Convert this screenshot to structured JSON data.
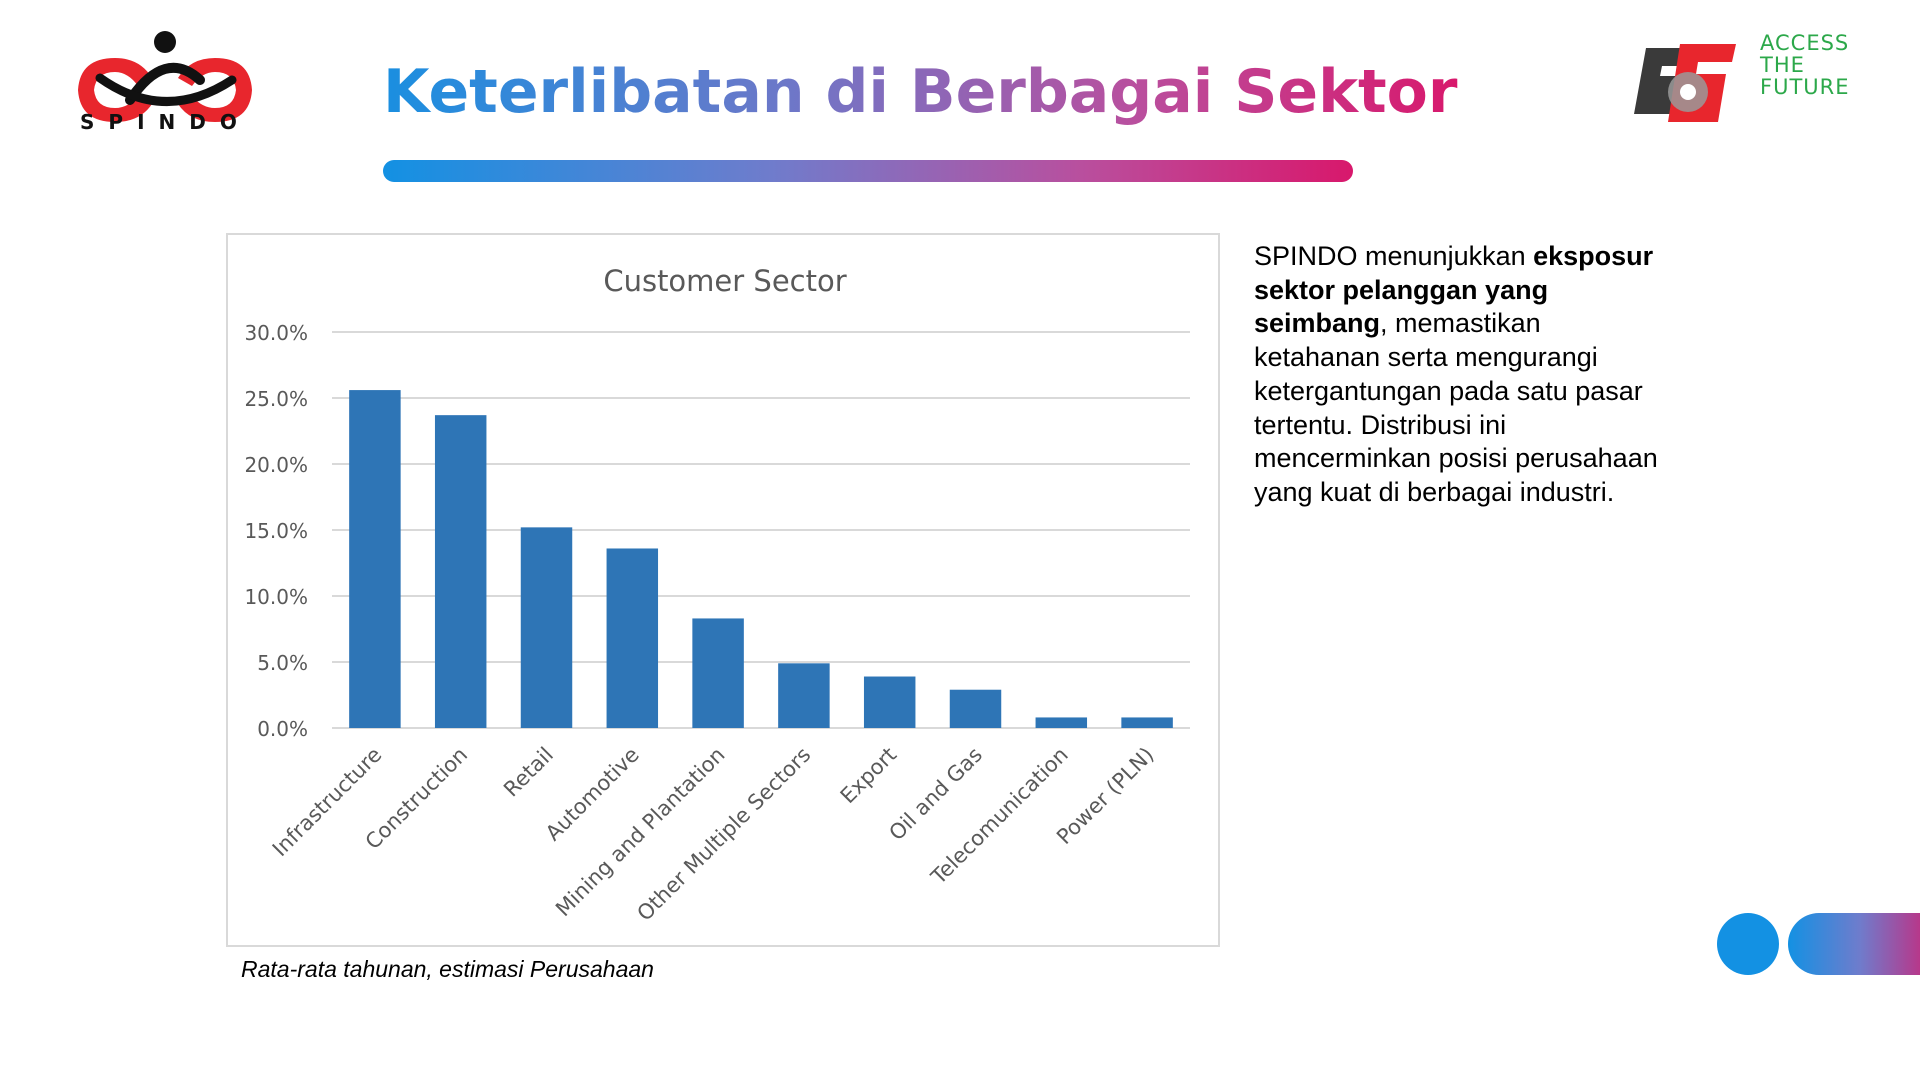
{
  "header": {
    "logo_text": "SPINDO",
    "title": "Keterlibatan di Berbagai Sektor",
    "tagline": [
      "ACCESS",
      "THE",
      "FUTURE"
    ]
  },
  "colors": {
    "bar": "#2e75b6",
    "title_gradient_start": "#1a8fe0",
    "title_gradient_end": "#d8186c",
    "logo_red": "#e8262d",
    "tagline_green": "#2ca84a"
  },
  "chart_data": {
    "type": "bar",
    "title": "Customer Sector",
    "categories": [
      "Infrastructure",
      "Construction",
      "Retail",
      "Automotive",
      "Mining and Plantation",
      "Other Multiple Sectors",
      "Export",
      "Oil and Gas",
      "Telecomunication",
      "Power (PLN)"
    ],
    "values": [
      25.6,
      23.7,
      15.2,
      13.6,
      8.3,
      4.9,
      3.9,
      2.9,
      0.8,
      0.8
    ],
    "yticks": [
      "0.0%",
      "5.0%",
      "10.0%",
      "15.0%",
      "20.0%",
      "25.0%",
      "30.0%"
    ],
    "ylim": [
      0,
      30
    ],
    "grid": true,
    "legend": "none"
  },
  "footnote": "Rata-rata tahunan, estimasi Perusahaan",
  "description": {
    "part1": "SPINDO menunjukkan ",
    "bold": "eksposur sektor pelanggan yang seimbang",
    "part2": ", memastikan ketahanan serta mengurangi ketergantungan pada satu pasar tertentu. Distribusi ini mencerminkan posisi perusahaan yang kuat di berbagai industri."
  }
}
